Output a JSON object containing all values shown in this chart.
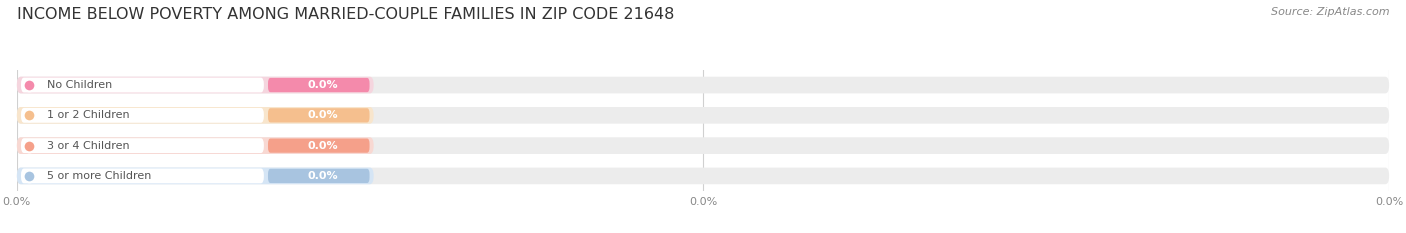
{
  "title": "INCOME BELOW POVERTY AMONG MARRIED-COUPLE FAMILIES IN ZIP CODE 21648",
  "source": "Source: ZipAtlas.com",
  "categories": [
    "No Children",
    "1 or 2 Children",
    "3 or 4 Children",
    "5 or more Children"
  ],
  "values": [
    0.0,
    0.0,
    0.0,
    0.0
  ],
  "bar_colors": [
    "#f48aab",
    "#f5bf8e",
    "#f5a08a",
    "#a8c4e0"
  ],
  "bar_bg_colors": [
    "#f5d5de",
    "#f8e5cc",
    "#f8d8d2",
    "#d5e5f5"
  ],
  "label_bg_colors": [
    "#ffffff",
    "#ffffff",
    "#ffffff",
    "#ffffff"
  ],
  "dot_colors": [
    "#f48aab",
    "#f5bf8e",
    "#f5a08a",
    "#a8c4e0"
  ],
  "background_color": "#ffffff",
  "title_fontsize": 11.5,
  "source_fontsize": 8,
  "label_fontsize": 8,
  "value_fontsize": 8,
  "tick_fontsize": 8,
  "bar_height": 0.55,
  "track_bg_color": "#ececec",
  "grid_color": "#d0d0d0",
  "xtick_labels": [
    "0.0%",
    "0.0%",
    "0.0%"
  ]
}
